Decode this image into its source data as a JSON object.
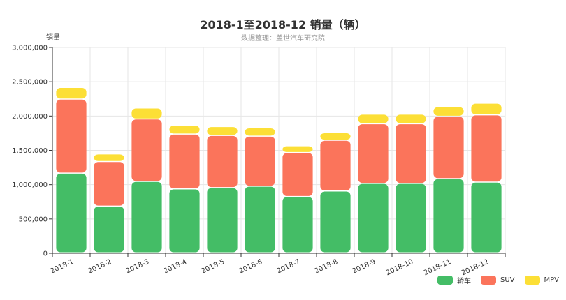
{
  "chart_data": {
    "type": "bar",
    "stacked": true,
    "title": "2018-1至2018-12 销量（辆）",
    "subtitle": "数据整理：盖世汽车研究院",
    "ylabel": "销量",
    "xlabel": "",
    "ylim": [
      0,
      3000000
    ],
    "yticks": [
      "0",
      "500,000",
      "1,000,000",
      "1,500,000",
      "2,000,000",
      "2,500,000",
      "3,000,000"
    ],
    "ytick_values": [
      0,
      500000,
      1000000,
      1500000,
      2000000,
      2500000,
      3000000
    ],
    "categories": [
      "2018-1",
      "2018-2",
      "2018-3",
      "2018-4",
      "2018-5",
      "2018-6",
      "2018-7",
      "2018-8",
      "2018-9",
      "2018-10",
      "2018-11",
      "2018-12"
    ],
    "series": [
      {
        "name": "轿车",
        "color": "#44bd66",
        "values": [
          1160000,
          680000,
          1040000,
          930000,
          950000,
          970000,
          820000,
          900000,
          1010000,
          1010000,
          1080000,
          1030000
        ]
      },
      {
        "name": "SUV",
        "color": "#fb745b",
        "values": [
          1080000,
          650000,
          910000,
          800000,
          760000,
          730000,
          640000,
          740000,
          870000,
          870000,
          910000,
          980000
        ]
      },
      {
        "name": "MPV",
        "color": "#fcdf36",
        "values": [
          170000,
          110000,
          160000,
          130000,
          130000,
          120000,
          100000,
          110000,
          140000,
          140000,
          140000,
          170000
        ]
      }
    ],
    "grid": true,
    "legend": "bottom-right"
  }
}
